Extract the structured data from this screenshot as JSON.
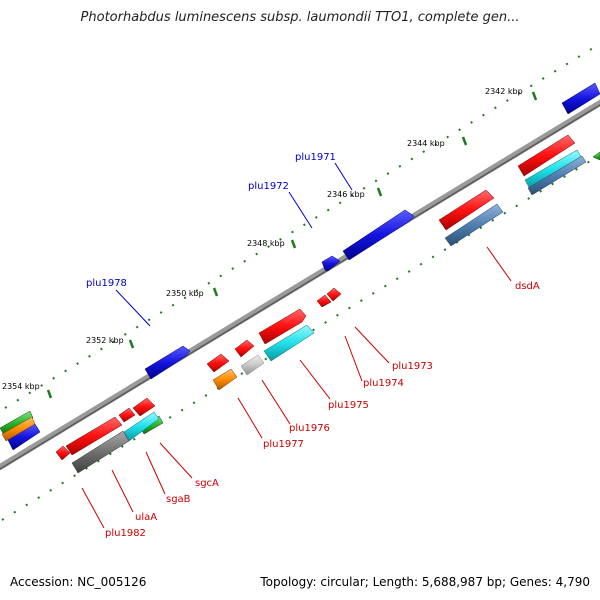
{
  "title": "Photorhabdus luminescens subsp. laumondii TTO1, complete gen...",
  "footer": {
    "accession": "Accession: NC_005126",
    "summary": "Topology: circular; Length: 5,688,987 bp; Genes: 4,790"
  },
  "colors": {
    "backbone": "#808080",
    "tick": "#1e7a1e",
    "blue_label": "#0000cc",
    "red_label": "#cc0000",
    "red": "#ff1a1a",
    "blue": "#1a1adf",
    "cyan": "#22e0e8",
    "steel": "#4f7fb0",
    "orange": "#ff8c00",
    "green": "#2bb52b",
    "grey": "#707070",
    "lightgrey": "#c8c8c8"
  },
  "kbp_ticks": [
    "2342 kbp",
    "2344 kbp",
    "2346 kbp",
    "2348 kbp",
    "2350 kbp",
    "2352 kbp",
    "2354 kbp"
  ],
  "gene_labels": {
    "blue": [
      "plu1971",
      "plu1972",
      "plu1978"
    ],
    "red": [
      "dsdA",
      "plu1973",
      "plu1974",
      "plu1975",
      "plu1976",
      "plu1977",
      "sgcA",
      "sgaB",
      "ulaA",
      "plu1982"
    ]
  }
}
